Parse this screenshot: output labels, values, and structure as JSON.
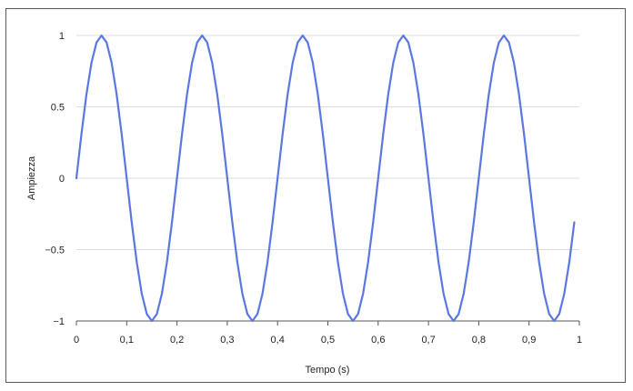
{
  "chart_data": {
    "type": "line",
    "title": "",
    "xlabel": "Tempo (s)",
    "ylabel": "Ampiezza",
    "xlim": [
      0,
      1
    ],
    "ylim": [
      -1,
      1
    ],
    "grid": true,
    "legend": "none",
    "line_color": "#5b78e0",
    "grid_color": "#dcdcdc",
    "x_ticks": [
      0,
      0.1,
      0.2,
      0.3,
      0.4,
      0.5,
      0.6,
      0.7,
      0.8,
      0.9,
      1
    ],
    "x_tick_labels": [
      "0",
      "0,1",
      "0,2",
      "0,3",
      "0,4",
      "0,5",
      "0,6",
      "0,7",
      "0,8",
      "0,9",
      "1"
    ],
    "y_ticks": [
      1,
      0.5,
      0,
      -0.5,
      -1
    ],
    "y_tick_labels": [
      "1",
      "0.5",
      "0",
      "−0.5",
      "−1"
    ],
    "series": [
      {
        "x": [
          0,
          0.01,
          0.02,
          0.03,
          0.04,
          0.05,
          0.06,
          0.07,
          0.08,
          0.09,
          0.1,
          0.11,
          0.12,
          0.13,
          0.14,
          0.15,
          0.16,
          0.17,
          0.18,
          0.19,
          0.2,
          0.21,
          0.22,
          0.23,
          0.24,
          0.25,
          0.26,
          0.27,
          0.28,
          0.29,
          0.3,
          0.31,
          0.32,
          0.33,
          0.34,
          0.35,
          0.36,
          0.37,
          0.38,
          0.39,
          0.4,
          0.41,
          0.42,
          0.43,
          0.44,
          0.45,
          0.46,
          0.47,
          0.48,
          0.49,
          0.5,
          0.51,
          0.52,
          0.53,
          0.54,
          0.55,
          0.56,
          0.57,
          0.58,
          0.59,
          0.6,
          0.61,
          0.62,
          0.63,
          0.64,
          0.65,
          0.66,
          0.67,
          0.68,
          0.69,
          0.7,
          0.71,
          0.72,
          0.73,
          0.74,
          0.75,
          0.76,
          0.77,
          0.78,
          0.79,
          0.8,
          0.81,
          0.82,
          0.83,
          0.84,
          0.85,
          0.86,
          0.87,
          0.88,
          0.89,
          0.9,
          0.91,
          0.92,
          0.93,
          0.94,
          0.95,
          0.96,
          0.97,
          0.98,
          0.99
        ],
        "y": [
          0,
          0.309,
          0.588,
          0.809,
          0.951,
          1,
          0.951,
          0.809,
          0.588,
          0.309,
          0,
          -0.309,
          -0.588,
          -0.809,
          -0.951,
          -1,
          -0.951,
          -0.809,
          -0.588,
          -0.309,
          0,
          0.309,
          0.588,
          0.809,
          0.951,
          1,
          0.951,
          0.809,
          0.588,
          0.309,
          0,
          -0.309,
          -0.588,
          -0.809,
          -0.951,
          -1,
          -0.951,
          -0.809,
          -0.588,
          -0.309,
          0,
          0.309,
          0.588,
          0.809,
          0.951,
          1,
          0.951,
          0.809,
          0.588,
          0.309,
          0,
          -0.309,
          -0.588,
          -0.809,
          -0.951,
          -1,
          -0.951,
          -0.809,
          -0.588,
          -0.309,
          0,
          0.309,
          0.588,
          0.809,
          0.951,
          1,
          0.951,
          0.809,
          0.588,
          0.309,
          0,
          -0.309,
          -0.588,
          -0.809,
          -0.951,
          -1,
          -0.951,
          -0.809,
          -0.588,
          -0.309,
          0,
          0.309,
          0.588,
          0.809,
          0.951,
          1,
          0.951,
          0.809,
          0.588,
          0.309,
          0,
          -0.309,
          -0.588,
          -0.809,
          -0.951,
          -1,
          -0.951,
          -0.809,
          -0.588,
          -0.309
        ]
      }
    ]
  }
}
